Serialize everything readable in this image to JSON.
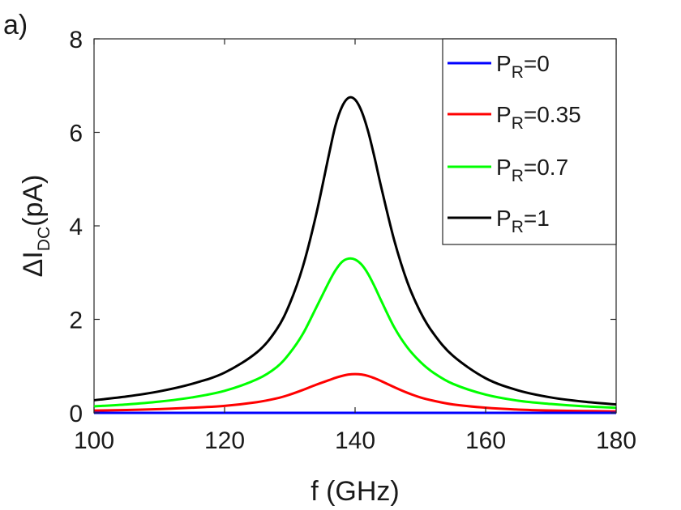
{
  "panel_label": "a)",
  "chart_data": {
    "type": "line",
    "title": "",
    "panel_label": "a)",
    "xlabel": "f (GHz)",
    "ylabel": {
      "prefix": "ΔI",
      "subscript": "DC",
      "suffix": "(pA)"
    },
    "xlim": [
      100,
      180
    ],
    "ylim": [
      0,
      8
    ],
    "xticks": [
      100,
      120,
      140,
      160,
      180
    ],
    "yticks": [
      0,
      2,
      4,
      6,
      8
    ],
    "grid": false,
    "legend_position": "top-right",
    "x": [
      100,
      105,
      110,
      115,
      120,
      125,
      128,
      130,
      132,
      134,
      136,
      137,
      138,
      139,
      140,
      141,
      142,
      143,
      144,
      146,
      148,
      150,
      152,
      155,
      160,
      165,
      170,
      175,
      180
    ],
    "series": [
      {
        "name": "P_R=0",
        "label_main": "P",
        "label_sub": "R",
        "label_value": "=0",
        "color": "#0000ff",
        "values": [
          0,
          0,
          0,
          0,
          0,
          0,
          0,
          0,
          0,
          0,
          0,
          0,
          0,
          0,
          0,
          0,
          0,
          0,
          0,
          0,
          0,
          0,
          0,
          0,
          0,
          0,
          0,
          0,
          0
        ]
      },
      {
        "name": "P_R=0.35",
        "label_main": "P",
        "label_sub": "R",
        "label_value": "=0.35",
        "color": "#ff0000",
        "values": [
          0.05,
          0.06,
          0.08,
          0.11,
          0.15,
          0.23,
          0.31,
          0.39,
          0.49,
          0.6,
          0.7,
          0.75,
          0.79,
          0.82,
          0.83,
          0.82,
          0.79,
          0.74,
          0.68,
          0.55,
          0.43,
          0.33,
          0.26,
          0.18,
          0.11,
          0.07,
          0.05,
          0.04,
          0.03
        ]
      },
      {
        "name": "P_R=0.7",
        "label_main": "P",
        "label_sub": "R",
        "label_value": "=0.7",
        "color": "#00ff00",
        "values": [
          0.14,
          0.18,
          0.24,
          0.33,
          0.47,
          0.72,
          0.98,
          1.28,
          1.69,
          2.24,
          2.8,
          3.05,
          3.23,
          3.3,
          3.28,
          3.17,
          2.97,
          2.7,
          2.4,
          1.83,
          1.4,
          1.09,
          0.86,
          0.62,
          0.39,
          0.26,
          0.19,
          0.14,
          0.11
        ]
      },
      {
        "name": "P_R=1",
        "label_main": "P",
        "label_sub": "R",
        "label_value": "=1",
        "color": "#000000",
        "values": [
          0.27,
          0.35,
          0.46,
          0.62,
          0.86,
          1.3,
          1.79,
          2.34,
          3.13,
          4.22,
          5.53,
          6.15,
          6.55,
          6.74,
          6.7,
          6.45,
          6.02,
          5.45,
          4.83,
          3.69,
          2.8,
          2.16,
          1.7,
          1.22,
          0.74,
          0.48,
          0.33,
          0.24,
          0.18
        ]
      }
    ]
  }
}
